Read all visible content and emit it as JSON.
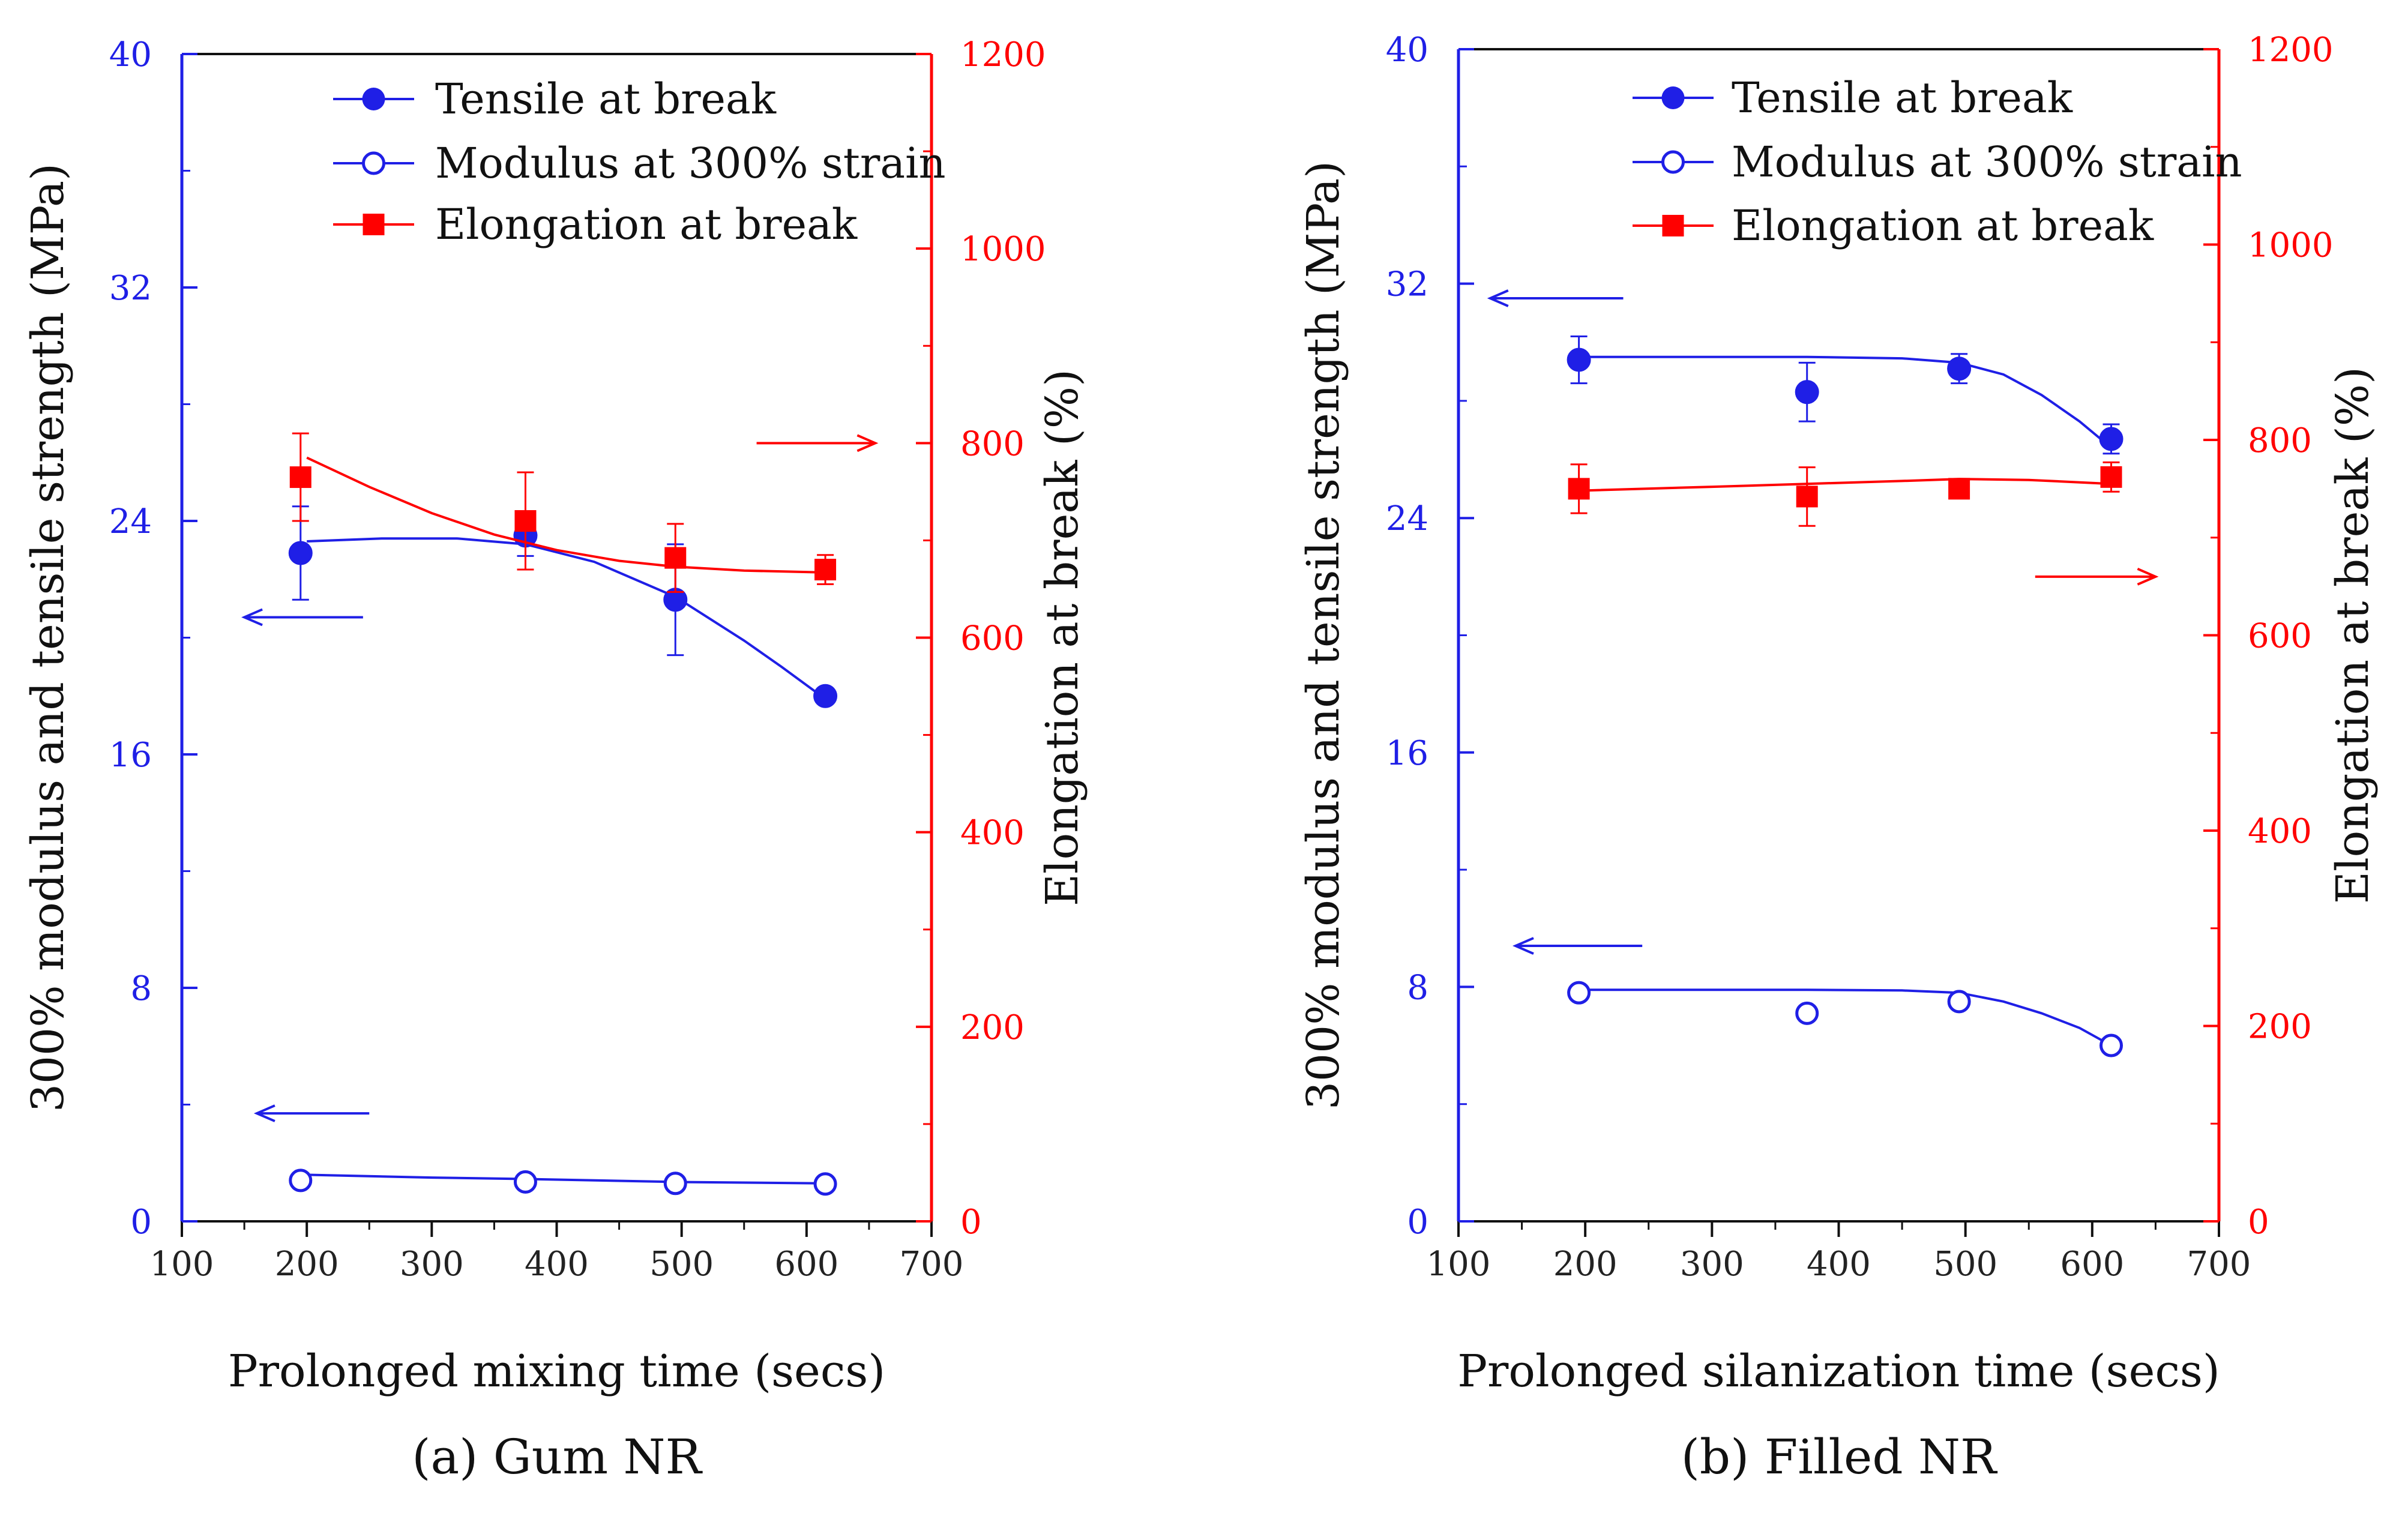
{
  "colors": {
    "blue": "#1f1fe6",
    "red": "#ff0000",
    "black": "#111111"
  },
  "chart_data": [
    {
      "type": "scatter",
      "caption": "(a) Gum NR",
      "xlabel": "Prolonged mixing time (secs)",
      "ylabel_left": "300% modulus and tensile strength (MPa)",
      "ylabel_right": "Elongation at break (%)",
      "xlim": [
        100,
        700
      ],
      "xticks": [
        100,
        200,
        300,
        400,
        500,
        600,
        700
      ],
      "ylim_left": [
        0,
        40
      ],
      "yticks_left": [
        0,
        8,
        16,
        24,
        32,
        40
      ],
      "ylim_right": [
        0,
        1200
      ],
      "yticks_right": [
        0,
        200,
        400,
        600,
        800,
        1000,
        1200
      ],
      "legend": [
        "Tensile at break",
        "Modulus at 300% strain",
        "Elongation at break"
      ],
      "x": [
        195,
        375,
        495,
        615
      ],
      "series": [
        {
          "name": "Tensile at break",
          "axis": "left",
          "marker": "filled-circle",
          "color": "blue",
          "values": [
            22.9,
            23.5,
            21.3,
            18.0
          ],
          "errors": [
            1.6,
            0.7,
            1.9,
            0.2
          ],
          "fit": [
            [
              200,
              23.3
            ],
            [
              260,
              23.4
            ],
            [
              320,
              23.4
            ],
            [
              375,
              23.2
            ],
            [
              430,
              22.6
            ],
            [
              495,
              21.4
            ],
            [
              550,
              19.9
            ],
            [
              580,
              19.0
            ],
            [
              615,
              17.9
            ]
          ]
        },
        {
          "name": "Modulus at 300% strain",
          "axis": "left",
          "marker": "open-circle",
          "color": "blue",
          "values": [
            1.4,
            1.35,
            1.3,
            1.28
          ],
          "errors": [
            0.05,
            0.05,
            0.05,
            0.05
          ],
          "fit": [
            [
              195,
              1.6
            ],
            [
              300,
              1.5
            ],
            [
              375,
              1.45
            ],
            [
              495,
              1.35
            ],
            [
              615,
              1.3
            ]
          ]
        },
        {
          "name": "Elongation at break",
          "axis": "right",
          "marker": "filled-square",
          "color": "red",
          "values": [
            765,
            720,
            682,
            670
          ],
          "errors": [
            45,
            50,
            35,
            15
          ],
          "fit": [
            [
              200,
              785
            ],
            [
              250,
              755
            ],
            [
              300,
              728
            ],
            [
              350,
              706
            ],
            [
              400,
              690
            ],
            [
              450,
              679
            ],
            [
              495,
              673
            ],
            [
              550,
              669
            ],
            [
              615,
              667
            ]
          ]
        }
      ],
      "arrows": [
        {
          "direction": "left",
          "axis": "left",
          "color": "blue",
          "x_from": 245,
          "x_to": 150,
          "y": 20.7
        },
        {
          "direction": "left",
          "axis": "left",
          "color": "blue",
          "x_from": 250,
          "x_to": 160,
          "y": 3.7
        },
        {
          "direction": "right",
          "axis": "right",
          "color": "red",
          "x_from": 560,
          "x_to": 655,
          "y": 800
        }
      ]
    },
    {
      "type": "scatter",
      "caption": "(b) Filled NR",
      "xlabel": "Prolonged silanization time (secs)",
      "ylabel_left": "300% modulus and tensile strength (MPa)",
      "ylabel_right": "Elongation at break (%)",
      "xlim": [
        100,
        700
      ],
      "xticks": [
        100,
        200,
        300,
        400,
        500,
        600,
        700
      ],
      "ylim_left": [
        0,
        40
      ],
      "yticks_left": [
        0,
        8,
        16,
        24,
        32,
        40
      ],
      "ylim_right": [
        0,
        1200
      ],
      "yticks_right": [
        0,
        200,
        400,
        600,
        800,
        1000,
        1200
      ],
      "legend": [
        "Tensile at break",
        "Modulus at 300% strain",
        "Elongation at break"
      ],
      "x": [
        195,
        375,
        495,
        615
      ],
      "series": [
        {
          "name": "Tensile at break",
          "axis": "left",
          "marker": "filled-circle",
          "color": "blue",
          "values": [
            29.4,
            28.3,
            29.1,
            26.7
          ],
          "errors": [
            0.8,
            1.0,
            0.5,
            0.5
          ],
          "fit": [
            [
              195,
              29.5
            ],
            [
              300,
              29.5
            ],
            [
              375,
              29.5
            ],
            [
              450,
              29.45
            ],
            [
              495,
              29.3
            ],
            [
              530,
              28.9
            ],
            [
              560,
              28.2
            ],
            [
              590,
              27.3
            ],
            [
              615,
              26.4
            ]
          ]
        },
        {
          "name": "Modulus at 300% strain",
          "axis": "left",
          "marker": "open-circle",
          "color": "blue",
          "values": [
            7.8,
            7.1,
            7.5,
            6.0
          ],
          "errors": [
            0.1,
            0.1,
            0.1,
            0.1
          ],
          "fit": [
            [
              195,
              7.9
            ],
            [
              300,
              7.9
            ],
            [
              375,
              7.9
            ],
            [
              450,
              7.88
            ],
            [
              495,
              7.8
            ],
            [
              530,
              7.5
            ],
            [
              560,
              7.1
            ],
            [
              590,
              6.6
            ],
            [
              615,
              6.0
            ]
          ]
        },
        {
          "name": "Elongation at break",
          "axis": "right",
          "marker": "filled-square",
          "color": "red",
          "values": [
            750,
            742,
            750,
            762
          ],
          "errors": [
            25,
            30,
            8,
            15
          ],
          "fit": [
            [
              195,
              748
            ],
            [
              300,
              752
            ],
            [
              375,
              755
            ],
            [
              450,
              758
            ],
            [
              495,
              760
            ],
            [
              550,
              759
            ],
            [
              615,
              755
            ]
          ]
        }
      ],
      "arrows": [
        {
          "direction": "left",
          "axis": "left",
          "color": "blue",
          "x_from": 230,
          "x_to": 125,
          "y": 31.5
        },
        {
          "direction": "left",
          "axis": "left",
          "color": "blue",
          "x_from": 245,
          "x_to": 145,
          "y": 9.4
        },
        {
          "direction": "right",
          "axis": "right",
          "color": "red",
          "x_from": 555,
          "x_to": 650,
          "y": 660
        }
      ]
    }
  ]
}
